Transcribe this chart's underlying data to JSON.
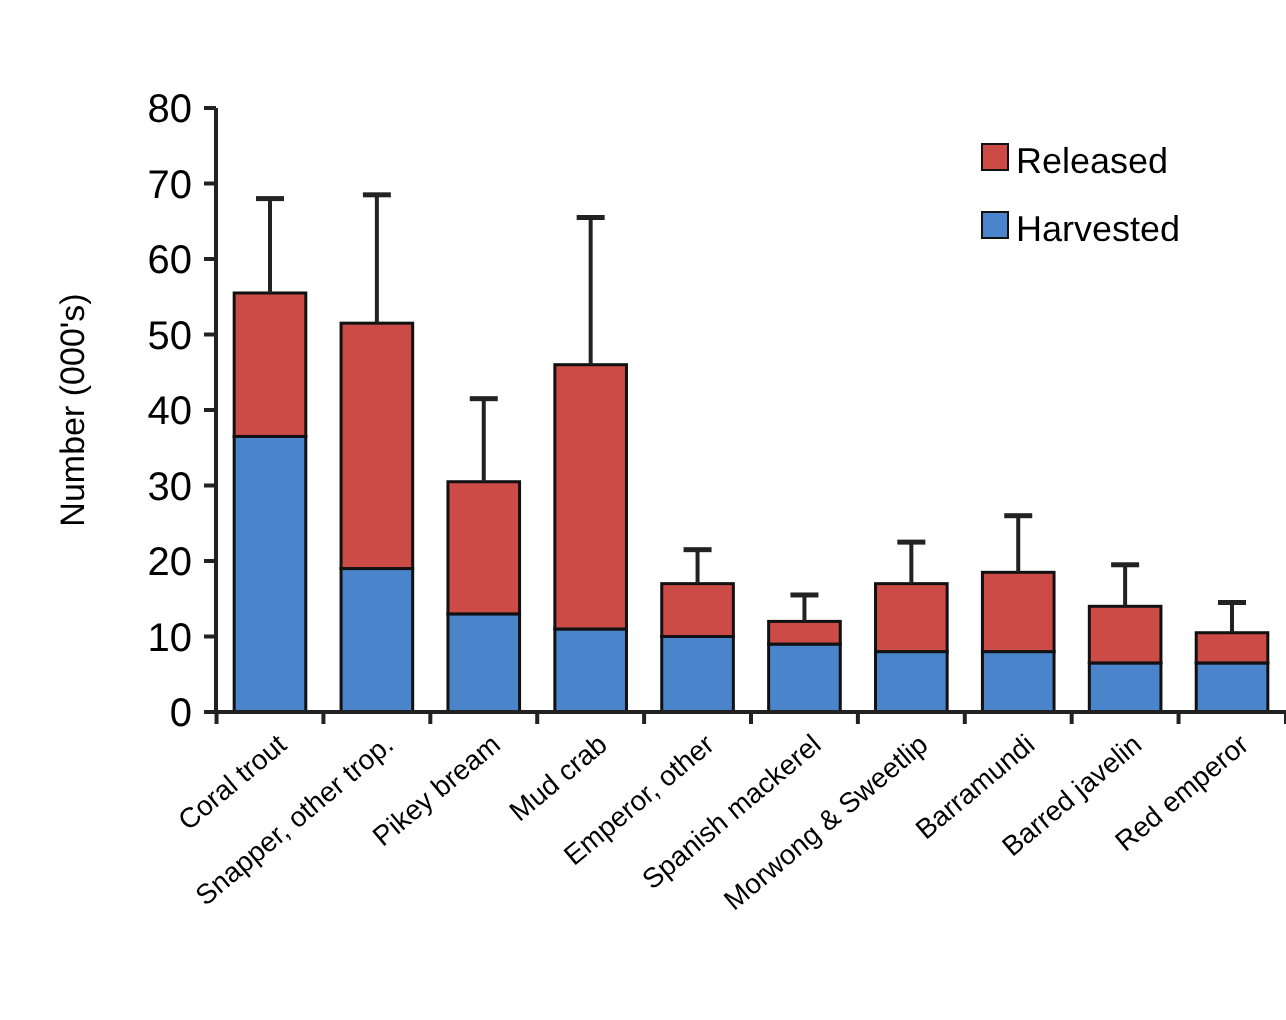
{
  "chart_data": {
    "type": "bar",
    "stacked": true,
    "ylabel": "Number  (000's)",
    "categories": [
      "Coral trout",
      "Snapper, other trop.",
      "Pikey bream",
      "Mud crab",
      "Emperor, other",
      "Spanish mackerel",
      "Morwong & Sweetlip",
      "Barramundi",
      "Barred javelin",
      "Red emperor"
    ],
    "series": [
      {
        "name": "Harvested",
        "color": "#4a85cc",
        "values": [
          36.5,
          19,
          13,
          11,
          10,
          9,
          8,
          8,
          6.5,
          6.5
        ]
      },
      {
        "name": "Released",
        "color": "#cd4b46",
        "values": [
          19,
          32.5,
          17.5,
          35,
          7,
          3,
          9,
          10.5,
          7.5,
          4
        ],
        "errors": [
          [
            55.5,
            68
          ],
          [
            51.5,
            68.5
          ],
          [
            30.5,
            41.5
          ],
          [
            46,
            65.5
          ],
          [
            17,
            21.5
          ],
          [
            12,
            15.5
          ],
          [
            17,
            22.5
          ],
          [
            18.5,
            26
          ],
          [
            14,
            19.5
          ],
          [
            10.5,
            14.5
          ]
        ]
      }
    ],
    "ylim": [
      0,
      80
    ],
    "yticks": [
      0,
      10,
      20,
      30,
      40,
      50,
      60,
      70,
      80
    ],
    "grid": false,
    "legend": "top right"
  }
}
